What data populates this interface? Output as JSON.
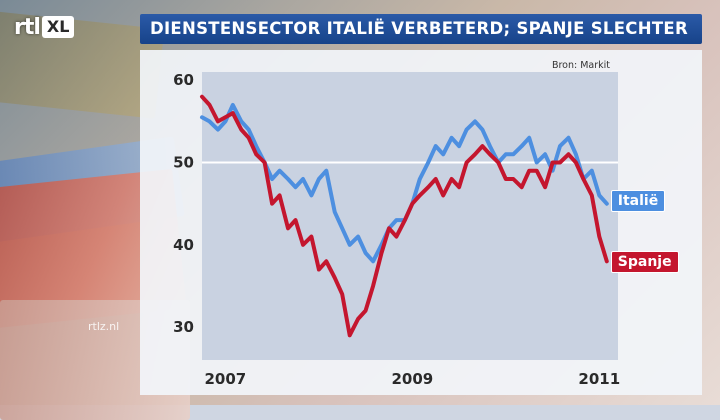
{
  "logo": {
    "part1": "rtl",
    "part2": "XL"
  },
  "title": "DIENSTENSECTOR ITALIË VERBETERD; SPANJE SLECHTER",
  "watermark": "rtlz.nl",
  "colors": {
    "title_bar": "#1f4f9c",
    "italie": "#4d8fe0",
    "spanje": "#c4162e",
    "plot_bg": "#c9d2e1"
  },
  "chart_data": {
    "type": "line",
    "source": "Bron: Markit",
    "x_ticks": [
      "2007",
      "2009",
      "2011"
    ],
    "x_tick_positions": [
      2007,
      2009,
      2011
    ],
    "y_ticks": [
      60,
      50,
      40,
      30
    ],
    "xlim": [
      2006.75,
      2011.2
    ],
    "ylim": [
      26,
      61
    ],
    "reference_line": 50,
    "series": [
      {
        "name": "Italië",
        "color": "#4d8fe0",
        "x": [
          2006.75,
          2006.83,
          2006.92,
          2007.0,
          2007.08,
          2007.17,
          2007.25,
          2007.33,
          2007.42,
          2007.5,
          2007.58,
          2007.67,
          2007.75,
          2007.83,
          2007.92,
          2008.0,
          2008.08,
          2008.17,
          2008.25,
          2008.33,
          2008.42,
          2008.5,
          2008.58,
          2008.67,
          2008.75,
          2008.83,
          2008.92,
          2009.0,
          2009.08,
          2009.17,
          2009.25,
          2009.33,
          2009.42,
          2009.5,
          2009.58,
          2009.67,
          2009.75,
          2009.83,
          2009.92,
          2010.0,
          2010.08,
          2010.17,
          2010.25,
          2010.33,
          2010.42,
          2010.5,
          2010.58,
          2010.67,
          2010.75,
          2010.83,
          2010.92,
          2011.0,
          2011.08
        ],
        "y": [
          55.5,
          55,
          54,
          55,
          57,
          55,
          54,
          52,
          50,
          48,
          49,
          48,
          47,
          48,
          46,
          48,
          49,
          44,
          42,
          40,
          41,
          39,
          38,
          40,
          42,
          43,
          43,
          45,
          48,
          50,
          52,
          51,
          53,
          52,
          54,
          55,
          54,
          52,
          50,
          51,
          51,
          52,
          53,
          50,
          51,
          49,
          52,
          53,
          51,
          48,
          49,
          46,
          45
        ]
      },
      {
        "name": "Spanje",
        "color": "#c4162e",
        "x": [
          2006.75,
          2006.83,
          2006.92,
          2007.0,
          2007.08,
          2007.17,
          2007.25,
          2007.33,
          2007.42,
          2007.5,
          2007.58,
          2007.67,
          2007.75,
          2007.83,
          2007.92,
          2008.0,
          2008.08,
          2008.17,
          2008.25,
          2008.33,
          2008.42,
          2008.5,
          2008.58,
          2008.67,
          2008.75,
          2008.83,
          2008.92,
          2009.0,
          2009.08,
          2009.17,
          2009.25,
          2009.33,
          2009.42,
          2009.5,
          2009.58,
          2009.67,
          2009.75,
          2009.83,
          2009.92,
          2010.0,
          2010.08,
          2010.17,
          2010.25,
          2010.33,
          2010.42,
          2010.5,
          2010.58,
          2010.67,
          2010.75,
          2010.83,
          2010.92,
          2011.0,
          2011.08
        ],
        "y": [
          58,
          57,
          55,
          55.5,
          56,
          54,
          53,
          51,
          50,
          45,
          46,
          42,
          43,
          40,
          41,
          37,
          38,
          36,
          34,
          29,
          31,
          32,
          35,
          39,
          42,
          41,
          43,
          45,
          46,
          47,
          48,
          46,
          48,
          47,
          50,
          51,
          52,
          51,
          50,
          48,
          48,
          47,
          49,
          49,
          47,
          50,
          50,
          51,
          50,
          48,
          46,
          41,
          38
        ]
      }
    ]
  }
}
